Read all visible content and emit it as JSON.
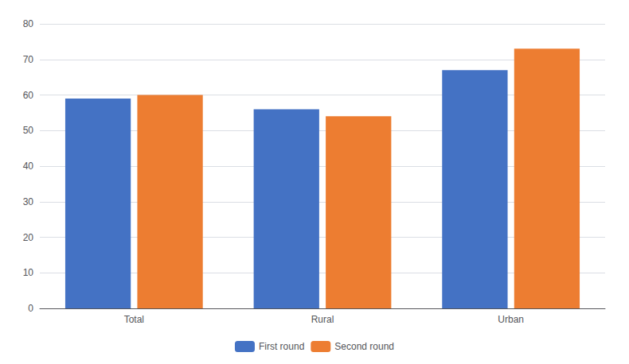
{
  "chart_data": {
    "type": "bar",
    "categories": [
      "Total",
      "Rural",
      "Urban"
    ],
    "series": [
      {
        "name": "First round",
        "color": "#4472C4",
        "values": [
          59,
          56,
          67
        ]
      },
      {
        "name": "Second round",
        "color": "#ED7D31",
        "values": [
          60,
          54,
          73
        ]
      }
    ],
    "ylim": [
      0,
      80
    ],
    "yticks": [
      0,
      10,
      20,
      30,
      40,
      50,
      60,
      70,
      80
    ],
    "grid": true,
    "legend": "bottom"
  }
}
